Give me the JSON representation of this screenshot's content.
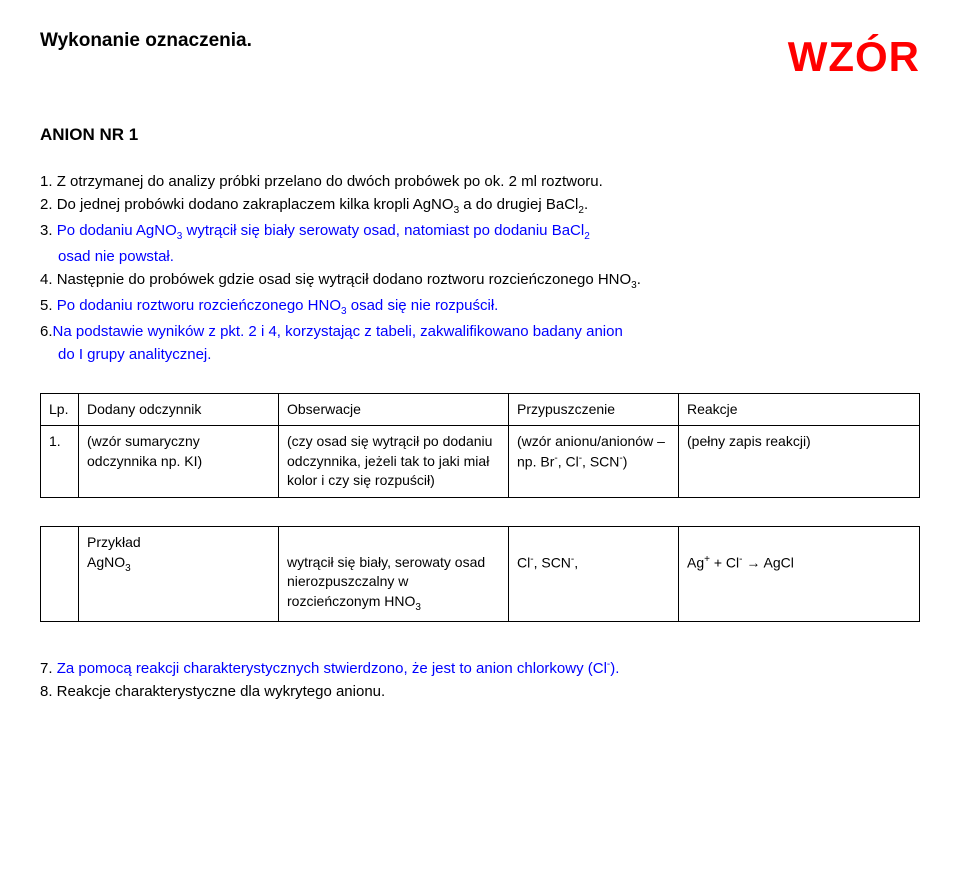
{
  "header": {
    "left": "Wykonanie oznaczenia.",
    "right": "WZÓR"
  },
  "subtitle": "ANION NR 1",
  "items": [
    {
      "num": "1.",
      "text": "Z otrzymanej do analizy próbki przelano do dwóch probówek po ok. 2 ml roztworu.",
      "blue": false
    },
    {
      "num": "2.",
      "text_prefix": "Do jednej probówki dodano zakraplaczem kilka kropli AgNO",
      "sub1": "3",
      "text_mid": " a do drugiej BaCl",
      "sub2": "2",
      "text_suffix": ".",
      "blue": false,
      "complex": true
    },
    {
      "num": "3.",
      "text_prefix": "Po dodaniu AgNO",
      "sub1": "3",
      "text_mid": " wytrącił się biały serowaty osad, natomiast po dodaniu BaCl",
      "sub2": "2",
      "text_suffix": "",
      "blue": true,
      "complex": true
    },
    {
      "num": "",
      "text": "osad nie powstał.",
      "blue": true,
      "indent": true
    },
    {
      "num": "4.",
      "text_prefix": "Następnie do probówek gdzie osad się wytrącił dodano roztworu rozcieńczonego HNO",
      "sub1": "3",
      "text_suffix": ".",
      "blue": false,
      "complex": true,
      "single_sub": true
    },
    {
      "num": "5.",
      "text_prefix": "Po dodaniu roztworu rozcieńczonego HNO",
      "sub1": "3",
      "text_mid": " osad się nie rozpuścił.",
      "blue": true,
      "complex": true,
      "single_sub": true
    },
    {
      "num": "6.",
      "text": "Na podstawie wyników z pkt. 2 i 4, korzystając z  tabeli, zakwalifikowano badany anion",
      "blue": true
    },
    {
      "num": "",
      "text": "do I grupy analitycznej.",
      "blue": true,
      "indent": true
    }
  ],
  "table1": {
    "headers": [
      "Lp.",
      "Dodany odczynnik",
      "Obserwacje",
      "Przypuszczenie",
      "Reakcje"
    ],
    "row": {
      "lp": "1.",
      "odcz": "(wzór sumaryczny odczynnika np. KI)",
      "obs": "(czy osad się wytrącił po dodaniu odczynnika, jeżeli tak to jaki miał kolor i czy się rozpuścił)",
      "przyp_l1": "(wzór anionu/anionów – np. Br",
      "przyp_l2": ", Cl",
      "przyp_l3": ", SCN",
      "przyp_end": ")",
      "reak": "(pełny zapis reakcji)"
    }
  },
  "table2": {
    "row": {
      "odcz_l1": "Przykład",
      "odcz_l2": "AgNO",
      "obs": "wytrącił się biały, serowaty osad nierozpuszczalny w rozcieńczonym HNO",
      "przyp_a": "Cl",
      "przyp_b": ", SCN",
      "przyp_c": ",",
      "reak_a": "Ag",
      "reak_b": "  +  Cl",
      "reak_c": "  →  AgCl"
    }
  },
  "footer": {
    "line7_a": "7. ",
    "line7_b": "Za pomocą reakcji charakterystycznych stwierdzono, że jest to anion chlorkowy (Cl",
    "line7_c": ").",
    "line8": "8. Reakcje charakterystyczne dla wykrytego anionu."
  },
  "colors": {
    "blue": "#0000ff",
    "red": "#ff0000",
    "black": "#000000",
    "bg": "#ffffff"
  }
}
